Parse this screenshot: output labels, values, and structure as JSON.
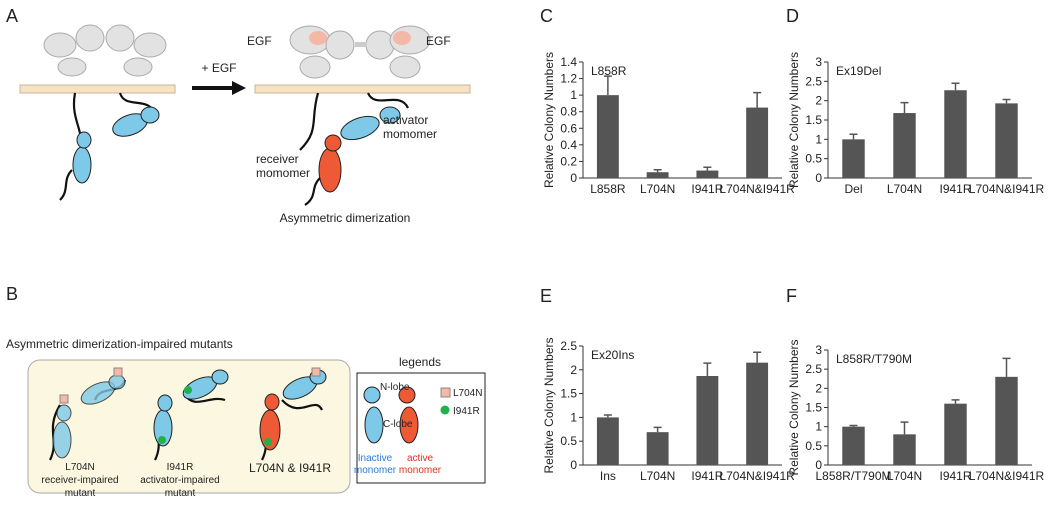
{
  "panels": {
    "a": "A",
    "b": "B",
    "c": "C",
    "d": "D",
    "e": "E",
    "f": "F"
  },
  "diagram": {
    "egf_arrow": "+ EGF",
    "egf_left": "EGF",
    "egf_right": "EGF",
    "activator": [
      "activator",
      "momomer"
    ],
    "receiver": [
      "receiver",
      "momomer"
    ],
    "caption_a": "Asymmetric dimerization",
    "caption_b": "Asymmetric dimerization-impaired mutants",
    "mutant1": [
      "L704N",
      "receiver-impaired",
      "mutant"
    ],
    "mutant2": [
      "I941R",
      "activator-impaired",
      "mutant"
    ],
    "mutant3": "L704N & I941R",
    "legend_title": "legends",
    "n_lobe": "N-lobe",
    "c_lobe": "C-lobe",
    "key_l704n": "L704N",
    "key_i941r": "I941R",
    "inactive": [
      "Inactive",
      "monomer"
    ],
    "active": [
      "active",
      "monomer"
    ]
  },
  "chart_data": [
    {
      "type": "bar",
      "title": "L858R",
      "y_label": "Relative Colony Numbers",
      "categories": [
        "L858R",
        "L704N",
        "I941R",
        "L704N&I941R"
      ],
      "values": [
        1.0,
        0.07,
        0.09,
        0.85
      ],
      "errors": [
        0.23,
        0.03,
        0.04,
        0.18
      ],
      "color": "#555555",
      "ylim": [
        0,
        1.4
      ],
      "yticks": [
        0,
        0.2,
        0.4,
        0.6,
        0.8,
        1,
        1.2,
        1.4
      ]
    },
    {
      "type": "bar",
      "title": "Ex19Del",
      "y_label": "Relative Colony Numbers",
      "categories": [
        "Del",
        "L704N",
        "I941R",
        "L704N&I941R"
      ],
      "values": [
        1.0,
        1.68,
        2.27,
        1.93
      ],
      "errors": [
        0.13,
        0.27,
        0.18,
        0.1
      ],
      "color": "#555555",
      "ylim": [
        0,
        3
      ],
      "yticks": [
        0,
        0.5,
        1,
        1.5,
        2,
        2.5,
        3
      ]
    },
    {
      "type": "bar",
      "title": "Ex20Ins",
      "y_label": "Relative Colony Numbers",
      "categories": [
        "Ins",
        "L704N",
        "I941R",
        "L704N&I941R"
      ],
      "values": [
        1.0,
        0.69,
        1.87,
        2.15
      ],
      "errors": [
        0.05,
        0.1,
        0.27,
        0.22
      ],
      "color": "#555555",
      "ylim": [
        0,
        2.5
      ],
      "yticks": [
        0,
        0.5,
        1,
        1.5,
        2,
        2.5
      ]
    },
    {
      "type": "bar",
      "title": "L858R/T790M",
      "y_label": "Relative Colony Numbers",
      "categories": [
        "L858R/T790M",
        "L704N",
        "I941R",
        "L704N&I941R"
      ],
      "values": [
        1.0,
        0.8,
        1.6,
        2.3
      ],
      "errors": [
        0.03,
        0.32,
        0.1,
        0.48
      ],
      "color": "#555555",
      "ylim": [
        0,
        3
      ],
      "yticks": [
        0,
        0.5,
        1,
        1.5,
        2,
        2.5,
        3
      ]
    }
  ]
}
